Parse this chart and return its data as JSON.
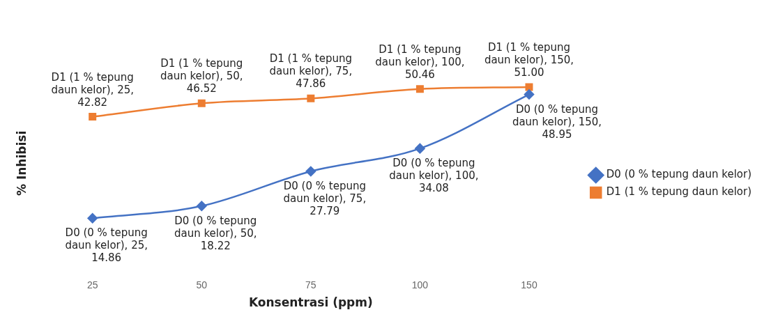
{
  "chart_data": {
    "type": "line",
    "xlabel": "Konsentrasi (ppm)",
    "ylabel": "% Inhibisi",
    "categories": [
      "25",
      "50",
      "75",
      "100",
      "150"
    ],
    "legend": "right",
    "grid": false,
    "series": [
      {
        "name": "D0 (0 % tepung daun kelor)",
        "color": "#4472c4",
        "marker": "diamond",
        "values": [
          14.86,
          18.22,
          27.79,
          34.08,
          48.95
        ],
        "value_labels": [
          "D0 (0 % tepung daun kelor), 25, 14.86",
          "D0 (0 % tepung daun kelor), 50, 18.22",
          "D0 (0 % tepung daun kelor), 75, 27.79",
          "D0 (0 % tepung daun kelor), 100, 34.08",
          "D0 (0 % tepung daun kelor), 150, 48.95"
        ]
      },
      {
        "name": "D1 (1 % tepung daun kelor)",
        "color": "#ed7d31",
        "marker": "square",
        "values": [
          42.82,
          46.52,
          47.86,
          50.46,
          51.0
        ],
        "value_labels": [
          "D1 (1 % tepung daun kelor), 25, 42.82",
          "D1 (1 % tepung daun kelor), 50, 46.52",
          "D1 (1 % tepung daun kelor), 75, 47.86",
          "D1 (1 % tepung daun kelor), 100, 50.46",
          "D1 (1 % tepung daun kelor), 150, 51.00"
        ]
      }
    ]
  }
}
